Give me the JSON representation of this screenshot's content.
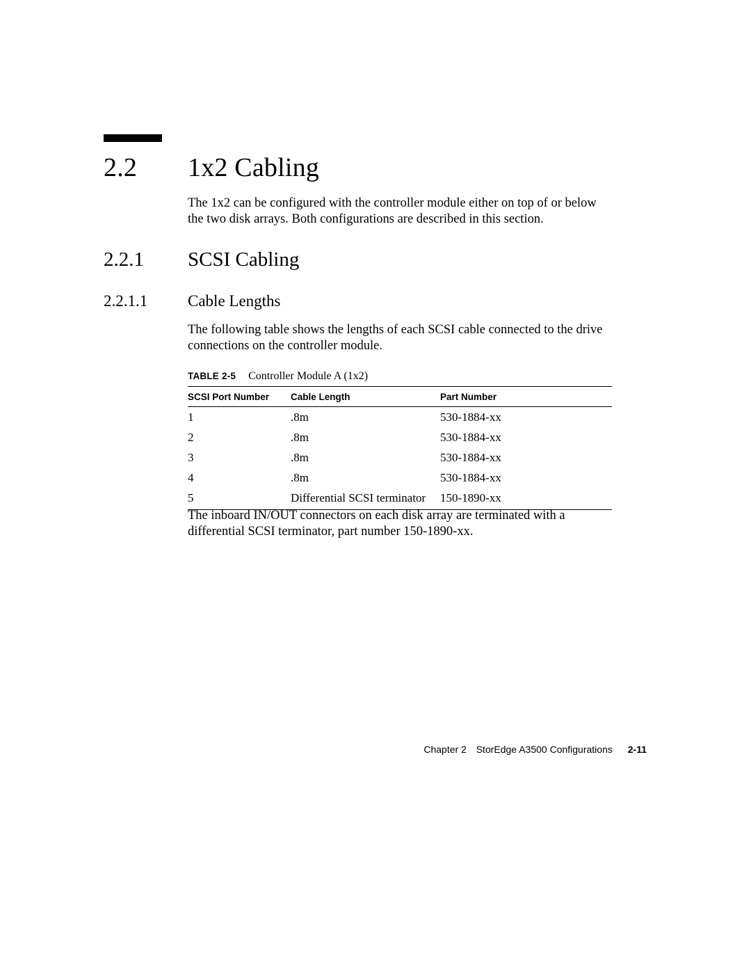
{
  "section": {
    "h1_number": "2.2",
    "h1_title": "1x2 Cabling",
    "intro": "The 1x2 can be configured with the controller module either on top of or below the two disk arrays. Both configurations are described in this section.",
    "h2_number": "2.2.1",
    "h2_title": "SCSI Cabling",
    "h3_number": "2.2.1.1",
    "h3_title": "Cable Lengths",
    "body1": "The following table shows the lengths of each SCSI cable connected to the drive connections on the controller module."
  },
  "table": {
    "caption_label": "TABLE 2-5",
    "caption_text": "Controller Module A (1x2)",
    "columns": [
      "SCSI Port Number",
      "Cable Length",
      "Part Number"
    ],
    "rows": [
      [
        "1",
        ".8m",
        "530-1884-xx"
      ],
      [
        "2",
        ".8m",
        "530-1884-xx"
      ],
      [
        "3",
        ".8m",
        "530-1884-xx"
      ],
      [
        "4",
        ".8m",
        "530-1884-xx"
      ],
      [
        "5",
        "Differential SCSI terminator",
        "150-1890-xx"
      ]
    ]
  },
  "body2": "The inboard IN/OUT connectors on each disk array are terminated with a differential SCSI terminator, part number 150-1890-xx.",
  "footer": {
    "chapter": "Chapter 2",
    "title": "StorEdge A3500 Configurations",
    "page": "2-11"
  }
}
